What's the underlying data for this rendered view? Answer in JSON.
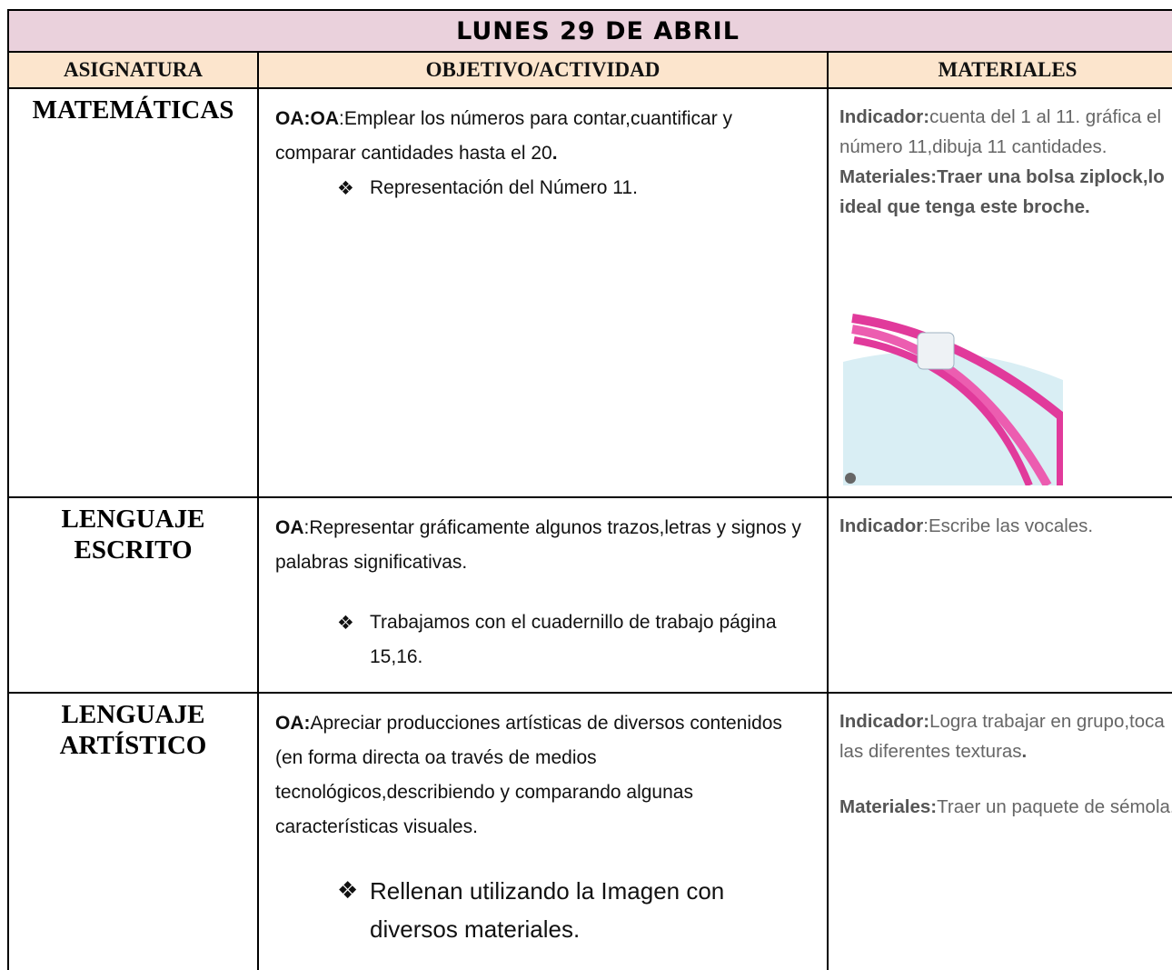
{
  "title": "LUNES 29 DE ABRIL",
  "headers": [
    "ASIGNATURA",
    "OBJETIVO/ACTIVIDAD",
    "MATERIALES"
  ],
  "rows": [
    {
      "subject": "MATEMÁTICAS",
      "objective": [
        {
          "text": "OA:OA",
          "bold": true
        },
        {
          "text": ":Emplear los números para contar,cuantificar y comparar cantidades hasta el 20"
        },
        {
          "text": ".",
          "bold": true
        }
      ],
      "bullets": [
        "Representación del Número  11."
      ],
      "materials": [
        [
          {
            "text": "Indicador:",
            "bold": true
          },
          {
            "text": "cuenta del 1 al 11. gráfica el número 11,dibuja 11 cantidades."
          }
        ],
        [
          {
            "text": "Materiales:Traer una bolsa ziplock,lo ideal que tenga este broche.",
            "bold": true
          }
        ]
      ]
    },
    {
      "subject": "LENGUAJE ESCRITO",
      "objective": [
        {
          "text": "OA",
          "bold": true
        },
        {
          "text": ":Representar gráficamente algunos trazos,letras y signos y palabras significativas."
        }
      ],
      "bullets": [
        "Trabajamos con el cuadernillo de trabajo página 15,16."
      ],
      "materials": [
        [
          {
            "text": "Indicador",
            "bold": true
          },
          {
            "text": ":Escribe las vocales."
          }
        ]
      ]
    },
    {
      "subject": "LENGUAJE ARTÍSTICO",
      "objective": [
        {
          "text": "OA:",
          "bold": true
        },
        {
          "text": "Apreciar producciones artísticas de diversos contenidos (en forma directa oa través de medios tecnológicos,describiendo y comparando algunas características visuales."
        }
      ],
      "bullets": [
        "Rellenan utilizando la Imagen con diversos materiales."
      ],
      "materials": [
        [
          {
            "text": "Indicador:",
            "bold": true
          },
          {
            "text": "Logra trabajar en grupo,toca las diferentes texturas"
          },
          {
            "text": ".",
            "bold": true
          }
        ],
        [
          {
            "text": "Materiales:",
            "bold": true
          },
          {
            "text": "Traer un paquete de sémola."
          }
        ]
      ]
    }
  ]
}
